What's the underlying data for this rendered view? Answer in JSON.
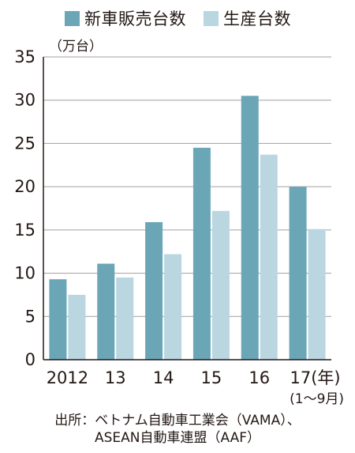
{
  "chart_data": {
    "type": "bar",
    "categories": [
      "2012",
      "13",
      "14",
      "15",
      "16",
      "17(年)"
    ],
    "category_note": "(1～9月)",
    "unit": "（万台）",
    "ylim": [
      0,
      35
    ],
    "yticks": [
      0,
      5,
      10,
      15,
      20,
      25,
      30,
      35
    ],
    "grid": true,
    "legend_position": "top",
    "series": [
      {
        "name": "新車販売台数",
        "color": "#6ba6b7",
        "values": [
          9.3,
          11.1,
          15.9,
          24.5,
          30.5,
          20.0
        ]
      },
      {
        "name": "生産台数",
        "color": "#bad6e0",
        "values": [
          7.5,
          9.5,
          12.2,
          17.2,
          23.7,
          15.1
        ]
      }
    ]
  },
  "source_line1": "出所：ベトナム自動車工業会（VAMA）、",
  "source_line2": "ASEAN自動車連盟（AAF）"
}
